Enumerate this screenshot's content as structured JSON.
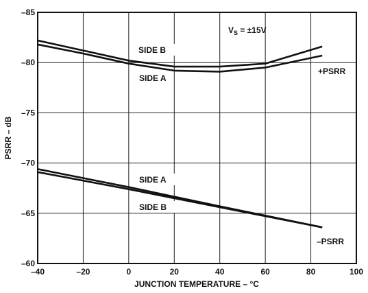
{
  "chart_data": {
    "type": "line",
    "title": "",
    "xlabel": "JUNCTION TEMPERATURE – °C",
    "ylabel": "PSRR – dB",
    "xlim": [
      -40,
      100
    ],
    "ylim": [
      -60,
      -85
    ],
    "y_axis_inverted": true,
    "grid": true,
    "x_ticks": [
      -40,
      -20,
      0,
      20,
      40,
      60,
      80,
      100
    ],
    "y_ticks": [
      -60,
      -65,
      -70,
      -75,
      -80,
      -85
    ],
    "x_tick_labels": [
      "–40",
      "–20",
      "0",
      "20",
      "40",
      "60",
      "80",
      "100"
    ],
    "y_tick_labels": [
      "–60",
      "–65",
      "–70",
      "–75",
      "–80",
      "–85"
    ],
    "series": [
      {
        "group": "+PSRR",
        "label": "SIDE B",
        "color": "#111111",
        "x": [
          -40,
          -20,
          0,
          20,
          40,
          60,
          85
        ],
        "y": [
          -82.2,
          -81.2,
          -80.2,
          -79.6,
          -79.6,
          -79.9,
          -81.6
        ]
      },
      {
        "group": "+PSRR",
        "label": "SIDE A",
        "color": "#111111",
        "x": [
          -40,
          -20,
          0,
          20,
          40,
          60,
          85
        ],
        "y": [
          -81.8,
          -80.9,
          -79.9,
          -79.2,
          -79.1,
          -79.5,
          -80.7
        ]
      },
      {
        "group": "–PSRR",
        "label": "SIDE A",
        "color": "#111111",
        "x": [
          -40,
          0,
          40,
          85
        ],
        "y": [
          -69.4,
          -67.6,
          -65.7,
          -63.6
        ]
      },
      {
        "group": "–PSRR",
        "label": "SIDE B",
        "color": "#111111",
        "x": [
          -40,
          0,
          40,
          85
        ],
        "y": [
          -69.1,
          -67.4,
          -65.6,
          -63.6
        ]
      }
    ],
    "annotations": {
      "condition_main": "V",
      "condition_sub": "S",
      "condition_value": " = ±15V",
      "side_b_upper": "SIDE B",
      "side_a_upper": "SIDE A",
      "plus_psrr": "+PSRR",
      "side_a_lower": "SIDE A",
      "side_b_lower": "SIDE B",
      "minus_psrr": "–PSRR"
    }
  }
}
